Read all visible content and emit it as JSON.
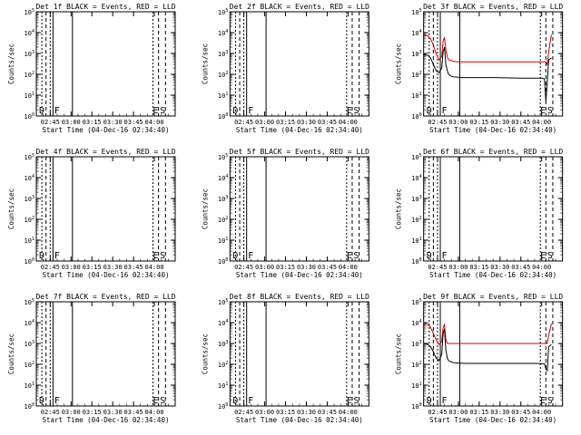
{
  "chart_data": [
    {
      "type": "line",
      "title": "Det 1f BLACK = Events, RED = LLD",
      "xlabel": "Start Time (04-Dec-16 02:34:40)",
      "ylabel": "Counts/sec",
      "x_ticks": [
        "02:45",
        "03:00",
        "03:15",
        "03:30",
        "03:45",
        "04:00"
      ],
      "y_ticks": [
        "10^0",
        "10^1",
        "10^2",
        "10^3",
        "10^4",
        "10^5"
      ],
      "markers": [
        "D",
        "F",
        "E",
        "S"
      ],
      "series": []
    },
    {
      "type": "line",
      "title": "Det 2f BLACK = Events, RED = LLD",
      "xlabel": "Start Time (04-Dec-16 02:34:40)",
      "ylabel": "Counts/sec",
      "x_ticks": [
        "02:45",
        "03:00",
        "03:15",
        "03:30",
        "03:45",
        "04:00"
      ],
      "y_ticks": [
        "10^0",
        "10^1",
        "10^2",
        "10^3",
        "10^4",
        "10^5"
      ],
      "markers": [
        "D",
        "F",
        "E",
        "S"
      ],
      "series": []
    },
    {
      "type": "line",
      "title": "Det 3f BLACK = Events, RED = LLD",
      "xlabel": "Start Time (04-Dec-16 02:34:40)",
      "ylabel": "Counts/sec",
      "x_ticks": [
        "02:45",
        "03:00",
        "03:15",
        "03:30",
        "03:45",
        "04:00"
      ],
      "y_ticks": [
        "10^0",
        "10^1",
        "10^2",
        "10^3",
        "10^4",
        "10^5"
      ],
      "markers": [
        "D",
        "F",
        "E",
        "S"
      ],
      "series": [
        {
          "color": "#cc0000",
          "x": [
            0,
            3,
            5,
            7,
            9,
            11,
            13,
            14,
            15,
            16,
            17,
            18,
            20,
            22,
            25,
            30,
            40,
            50,
            60,
            70,
            80,
            85,
            88,
            89,
            90,
            92
          ],
          "y": [
            8000,
            7000,
            5000,
            2500,
            1000,
            500,
            700,
            4000,
            6000,
            1500,
            700,
            500,
            450,
            420,
            400,
            400,
            400,
            400,
            400,
            400,
            400,
            400,
            400,
            300,
            1200,
            8000
          ]
        },
        {
          "color": "#000000",
          "x": [
            0,
            3,
            5,
            7,
            9,
            11,
            13,
            14,
            15,
            16,
            17,
            18,
            20,
            22,
            25,
            30,
            40,
            50,
            60,
            70,
            80,
            85,
            86,
            87,
            88,
            89,
            90,
            92
          ],
          "y": [
            900,
            800,
            600,
            300,
            150,
            120,
            200,
            1200,
            2000,
            300,
            150,
            100,
            80,
            75,
            72,
            70,
            70,
            70,
            68,
            66,
            65,
            65,
            62,
            60,
            5,
            40,
            500,
            600
          ]
        }
      ]
    },
    {
      "type": "line",
      "title": "Det 4f BLACK = Events, RED = LLD",
      "xlabel": "Start Time (04-Dec-16 02:34:40)",
      "ylabel": "Counts/sec",
      "x_ticks": [
        "02:45",
        "03:00",
        "03:15",
        "03:30",
        "03:45",
        "04:00"
      ],
      "y_ticks": [
        "10^0",
        "10^1",
        "10^2",
        "10^3",
        "10^4",
        "10^5"
      ],
      "markers": [
        "D",
        "F",
        "E",
        "S"
      ],
      "series": []
    },
    {
      "type": "line",
      "title": "Det 5f BLACK = Events, RED = LLD",
      "xlabel": "Start Time (04-Dec-16 02:34:40)",
      "ylabel": "Counts/sec",
      "x_ticks": [
        "02:45",
        "03:00",
        "03:15",
        "03:30",
        "03:45",
        "04:00"
      ],
      "y_ticks": [
        "10^0",
        "10^1",
        "10^2",
        "10^3",
        "10^4",
        "10^5"
      ],
      "markers": [
        "D",
        "F",
        "E",
        "S"
      ],
      "series": []
    },
    {
      "type": "line",
      "title": "Det 6f BLACK = Events, RED = LLD",
      "xlabel": "Start Time (04-Dec-16 02:34:40)",
      "ylabel": "Counts/sec",
      "x_ticks": [
        "02:45",
        "03:00",
        "03:15",
        "03:30",
        "03:45",
        "04:00"
      ],
      "y_ticks": [
        "10^0",
        "10^1",
        "10^2",
        "10^3",
        "10^4",
        "10^5"
      ],
      "markers": [
        "D",
        "F",
        "E",
        "S"
      ],
      "series": []
    },
    {
      "type": "line",
      "title": "Det 7f BLACK = Events, RED = LLD",
      "xlabel": "Start Time (04-Dec-16 02:34:40)",
      "ylabel": "Counts/sec",
      "x_ticks": [
        "02:45",
        "03:00",
        "03:15",
        "03:30",
        "03:45",
        "04:00"
      ],
      "y_ticks": [
        "10^0",
        "10^1",
        "10^2",
        "10^3",
        "10^4",
        "10^5"
      ],
      "markers": [
        "D",
        "F",
        "E",
        "S"
      ],
      "series": []
    },
    {
      "type": "line",
      "title": "Det 8f BLACK = Events, RED = LLD",
      "xlabel": "Start Time (04-Dec-16 02:34:40)",
      "ylabel": "Counts/sec",
      "x_ticks": [
        "02:45",
        "03:00",
        "03:15",
        "03:30",
        "03:45",
        "04:00"
      ],
      "y_ticks": [
        "10^0",
        "10^1",
        "10^2",
        "10^3",
        "10^4",
        "10^5"
      ],
      "markers": [
        "D",
        "F",
        "E",
        "S"
      ],
      "series": []
    },
    {
      "type": "line",
      "title": "Det 9f BLACK = Events, RED = LLD",
      "xlabel": "Start Time (04-Dec-16 02:34:40)",
      "ylabel": "Counts/sec",
      "x_ticks": [
        "02:45",
        "03:00",
        "03:15",
        "03:30",
        "03:45",
        "04:00"
      ],
      "y_ticks": [
        "10^0",
        "10^1",
        "10^2",
        "10^3",
        "10^4",
        "10^5"
      ],
      "markers": [
        "D",
        "F",
        "E",
        "S"
      ],
      "series": [
        {
          "color": "#cc0000",
          "x": [
            0,
            3,
            5,
            7,
            9,
            11,
            13,
            14,
            15,
            16,
            17,
            18,
            20,
            22,
            25,
            30,
            40,
            50,
            60,
            70,
            80,
            85,
            88,
            89,
            90,
            92
          ],
          "y": [
            9000,
            8000,
            6000,
            3000,
            1500,
            900,
            1200,
            6000,
            8000,
            1500,
            1000,
            1000,
            1000,
            1000,
            1000,
            1000,
            1000,
            1000,
            1000,
            1000,
            1000,
            1000,
            1000,
            1000,
            2500,
            9000
          ]
        },
        {
          "color": "#000000",
          "x": [
            0,
            3,
            5,
            7,
            9,
            11,
            13,
            14,
            15,
            16,
            17,
            18,
            20,
            22,
            25,
            30,
            40,
            50,
            60,
            70,
            80,
            85,
            86,
            87,
            88,
            89,
            90,
            92
          ],
          "y": [
            1000,
            900,
            700,
            400,
            200,
            150,
            300,
            3000,
            5000,
            500,
            200,
            150,
            130,
            120,
            115,
            110,
            110,
            110,
            110,
            110,
            110,
            108,
            106,
            105,
            60,
            50,
            700,
            900
          ]
        }
      ]
    }
  ]
}
